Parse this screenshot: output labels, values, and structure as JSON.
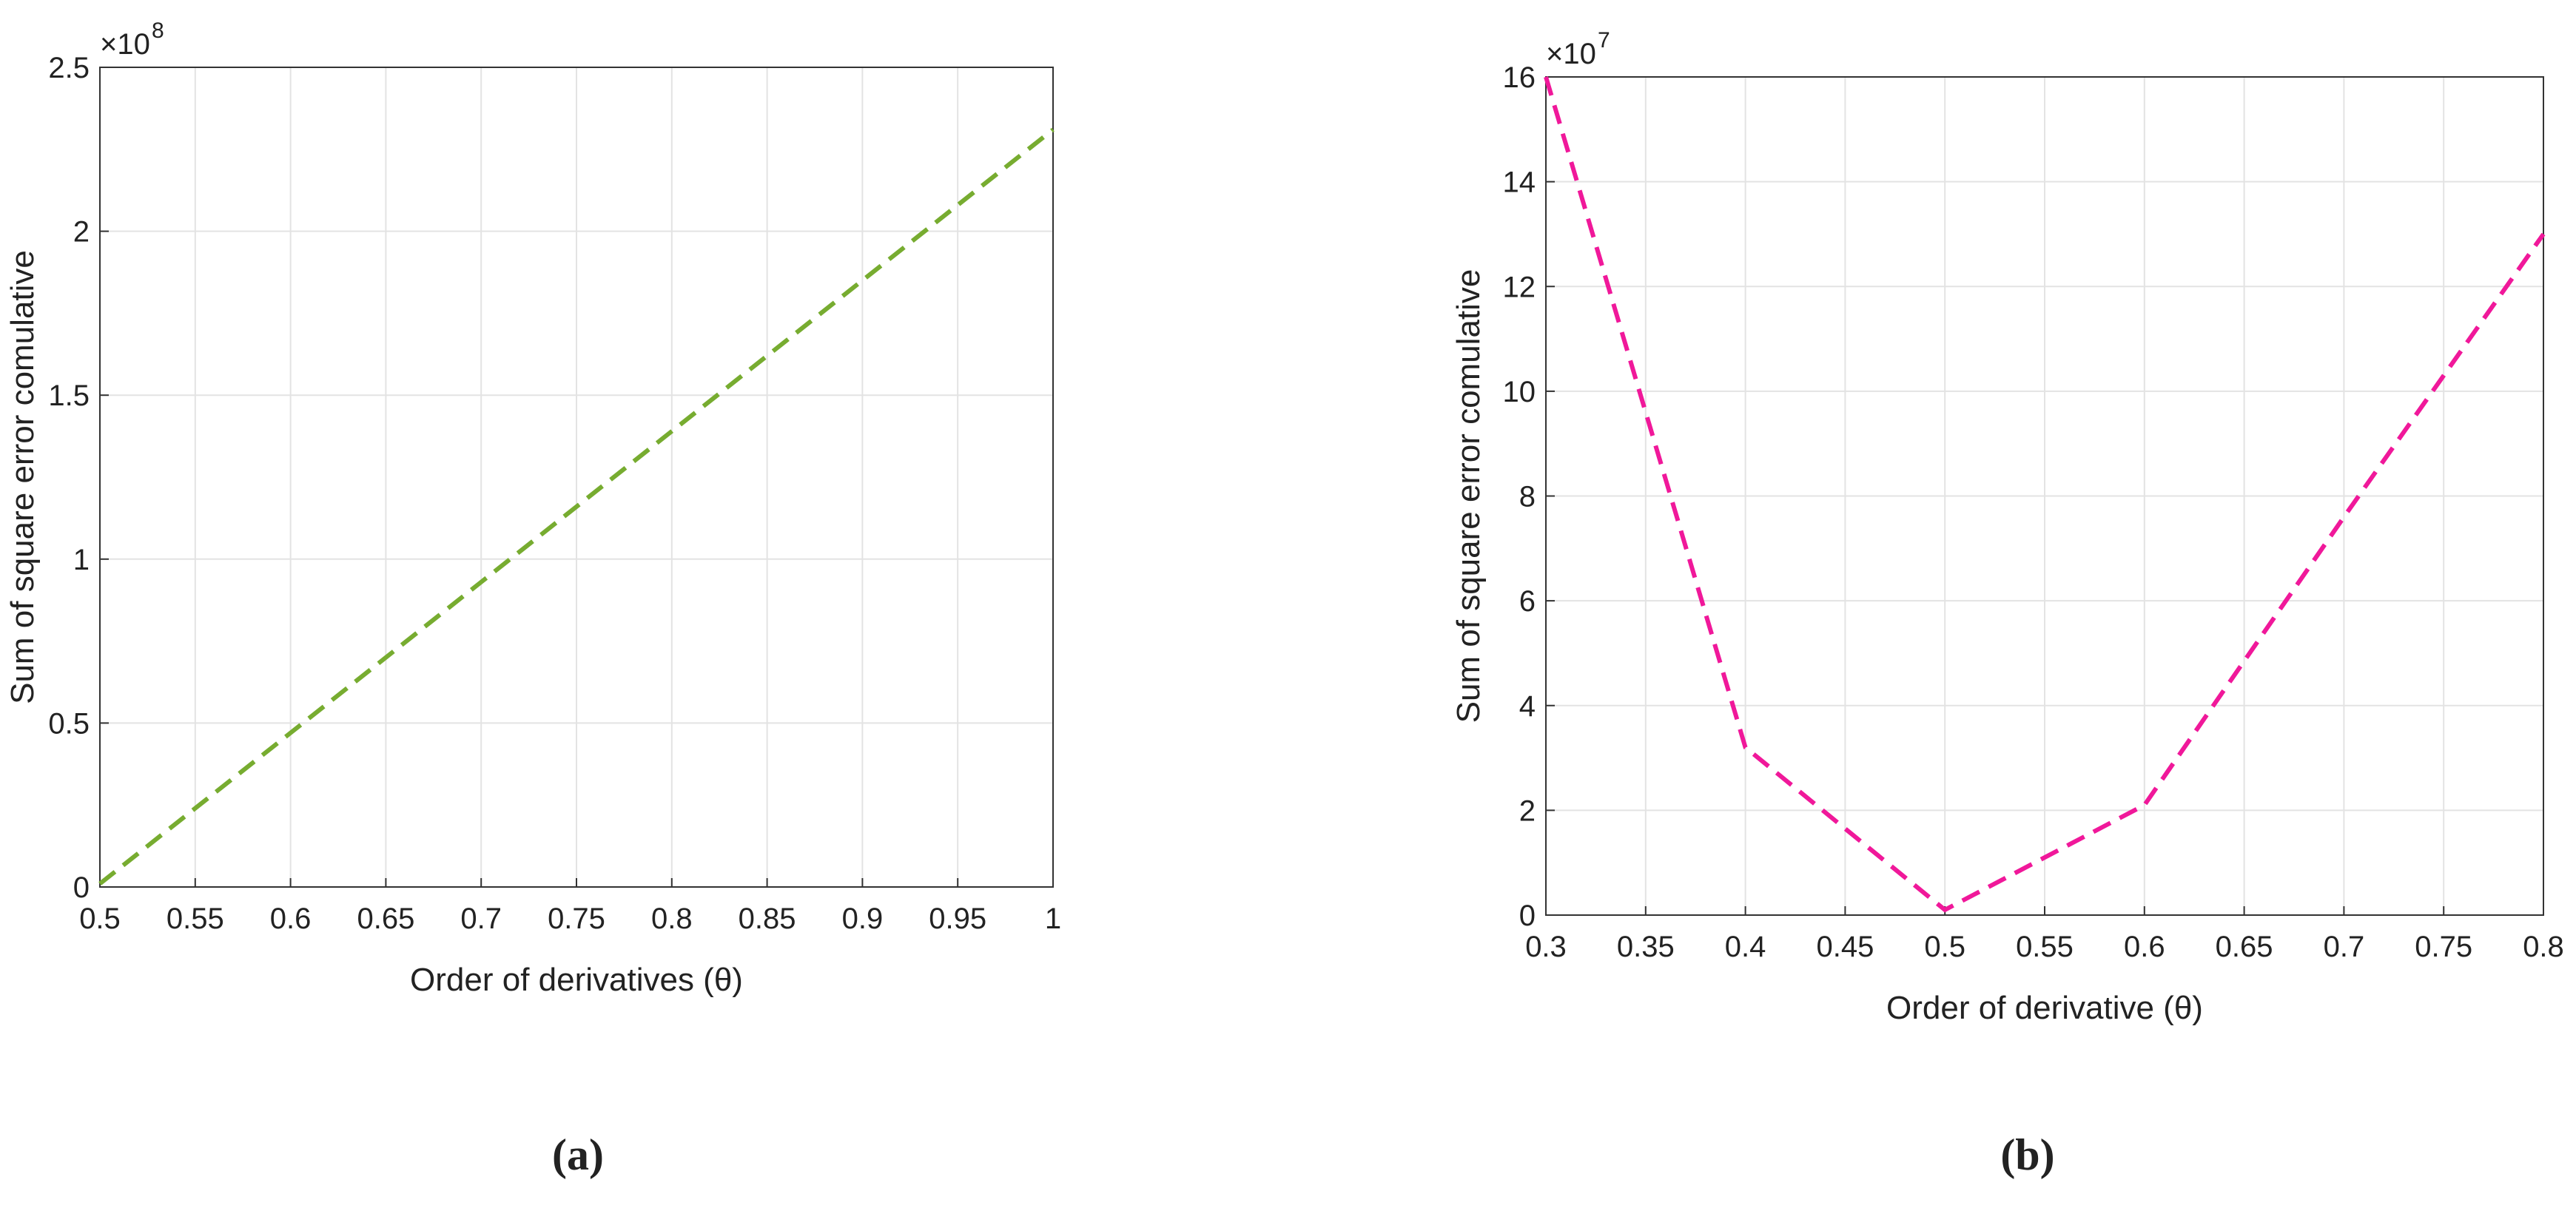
{
  "chart_data": [
    {
      "type": "line",
      "caption": "(a)",
      "xlabel": "Order of derivatives (θ)",
      "ylabel": "Sum of square error comulative",
      "y_multiplier": "×10",
      "y_multiplier_exponent": "8",
      "x": [
        0.5,
        0.6,
        0.7,
        0.8,
        0.9,
        1.0
      ],
      "series": [
        {
          "color": "#77ac30",
          "values": [
            0.01,
            0.47,
            0.93,
            1.39,
            1.85,
            2.31
          ]
        }
      ],
      "xlim": [
        0.5,
        1
      ],
      "xticks": [
        0.5,
        0.55,
        0.6,
        0.65,
        0.7,
        0.75,
        0.8,
        0.85,
        0.9,
        0.95,
        1
      ],
      "ylim": [
        0,
        2.5
      ],
      "yticks": [
        0,
        0.5,
        1,
        1.5,
        2,
        2.5
      ],
      "grid": true,
      "line_style": "dashed"
    },
    {
      "type": "line",
      "caption": "(b)",
      "xlabel": "Order of derivative (θ)",
      "ylabel": "Sum of square error comulative",
      "y_multiplier": "×10",
      "y_multiplier_exponent": "7",
      "x": [
        0.3,
        0.4,
        0.5,
        0.6,
        0.7,
        0.8
      ],
      "series": [
        {
          "color": "#f0189a",
          "values": [
            16,
            3.2,
            0.1,
            2.1,
            7.6,
            13
          ]
        }
      ],
      "xlim": [
        0.3,
        0.8
      ],
      "xticks": [
        0.3,
        0.35,
        0.4,
        0.45,
        0.5,
        0.55,
        0.6,
        0.65,
        0.7,
        0.75,
        0.8
      ],
      "ylim": [
        0,
        16
      ],
      "yticks": [
        0,
        2,
        4,
        6,
        8,
        10,
        12,
        14,
        16
      ],
      "grid": true,
      "line_style": "dashed"
    }
  ]
}
